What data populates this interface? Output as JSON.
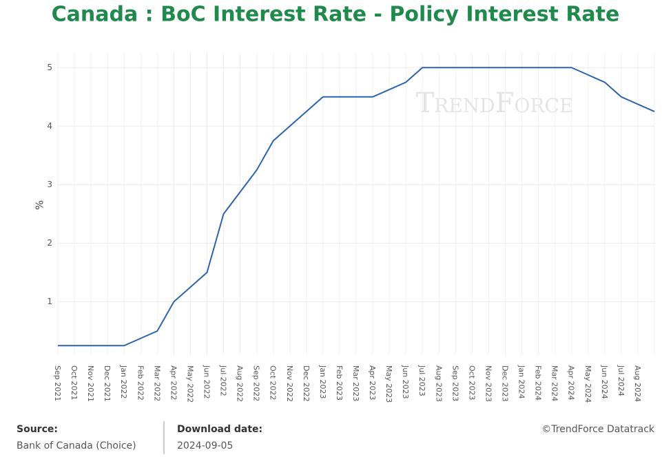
{
  "chart_data": {
    "type": "line",
    "title": "Canada : BoC Interest Rate - Policy Interest Rate",
    "y_label": "%",
    "watermark": "TrendForce",
    "categories": [
      "Sep 2021",
      "Oct 2021",
      "Nov 2021",
      "Dec 2021",
      "Jan 2022",
      "Feb 2022",
      "Mar 2022",
      "Apr 2022",
      "May 2022",
      "Jun 2022",
      "Jul 2022",
      "Aug 2022",
      "Sep 2022",
      "Oct 2022",
      "Nov 2022",
      "Dec 2022",
      "Jan 2023",
      "Feb 2023",
      "Mar 2023",
      "Apr 2023",
      "May 2023",
      "Jun 2023",
      "Jul 2023",
      "Aug 2023",
      "Sep 2023",
      "Oct 2023",
      "Nov 2023",
      "Dec 2023",
      "Jan 2024",
      "Feb 2024",
      "Mar 2024",
      "Apr 2024",
      "May 2024",
      "Jun 2024",
      "Jul 2024",
      "Aug 2024",
      null
    ],
    "series": [
      {
        "name": "Policy Interest Rate",
        "color": "#2b63ad",
        "values": [
          0.25,
          0.25,
          0.25,
          0.25,
          0.25,
          0.375,
          0.5,
          1,
          1.25,
          1.5,
          2.5,
          2.875,
          3.25,
          3.75,
          4,
          4.25,
          4.5,
          4.5,
          4.5,
          4.5,
          4.625,
          4.75,
          5,
          5,
          5,
          5,
          5,
          5,
          5,
          5,
          5,
          5,
          4.875,
          4.75,
          4.5,
          4.375,
          4.25
        ]
      }
    ],
    "ylim": [
      0.1,
      5.25
    ],
    "yticks": [
      1,
      2,
      3,
      4,
      5
    ],
    "grid": true,
    "footer": {
      "source_label": "Source:",
      "source": "Bank of Canada (Choice)",
      "date_label": "Download date:",
      "date": "2024-09-05",
      "credit": "©TrendForce Datatrack"
    }
  }
}
